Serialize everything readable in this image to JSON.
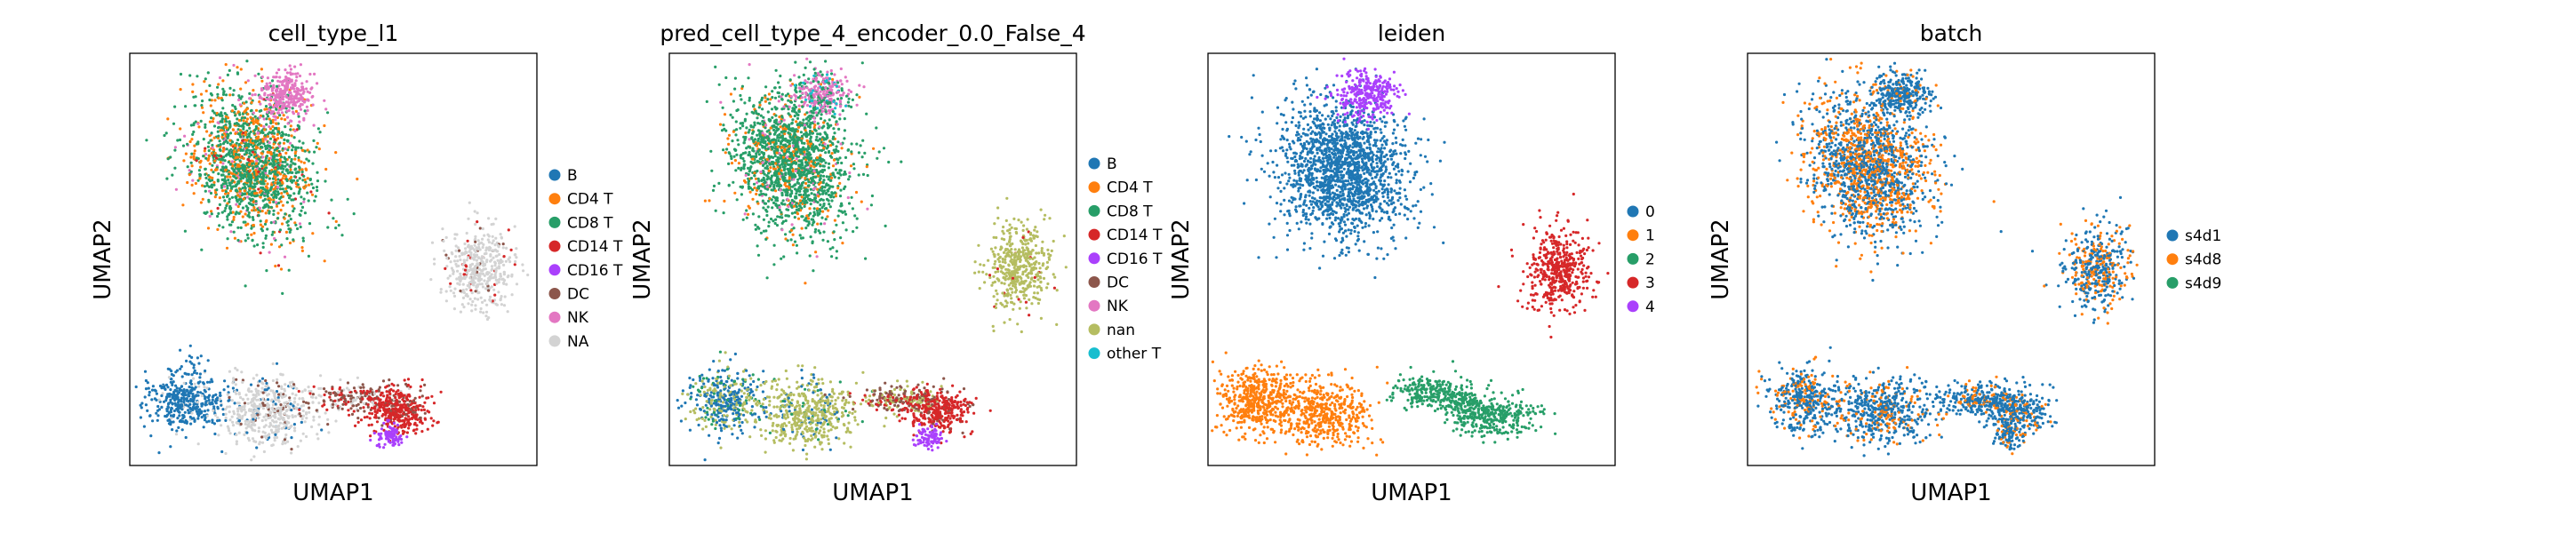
{
  "chart_data": [
    {
      "type": "scatter",
      "title": "cell_type_l1",
      "xlabel": "UMAP1",
      "ylabel": "UMAP2",
      "legend": "right",
      "grid": false,
      "categories": [
        {
          "label": "B",
          "color": "#1f77b4"
        },
        {
          "label": "CD4 T",
          "color": "#ff7f0e"
        },
        {
          "label": "CD8 T",
          "color": "#279e68"
        },
        {
          "label": "CD14 T",
          "color": "#d62728"
        },
        {
          "label": "CD16 T",
          "color": "#aa40fc"
        },
        {
          "label": "DC",
          "color": "#8c564b"
        },
        {
          "label": "NK",
          "color": "#e377c2"
        },
        {
          "label": "NA",
          "color": "#d3d3d3"
        }
      ]
    },
    {
      "type": "scatter",
      "title": "pred_cell_type_4_encoder_0.0_False_4",
      "xlabel": "UMAP1",
      "ylabel": "UMAP2",
      "legend": "right",
      "grid": false,
      "categories": [
        {
          "label": "B",
          "color": "#1f77b4"
        },
        {
          "label": "CD4 T",
          "color": "#ff7f0e"
        },
        {
          "label": "CD8 T",
          "color": "#279e68"
        },
        {
          "label": "CD14 T",
          "color": "#d62728"
        },
        {
          "label": "CD16 T",
          "color": "#aa40fc"
        },
        {
          "label": "DC",
          "color": "#8c564b"
        },
        {
          "label": "NK",
          "color": "#e377c2"
        },
        {
          "label": "nan",
          "color": "#b5bd61"
        },
        {
          "label": "other T",
          "color": "#17becf"
        }
      ]
    },
    {
      "type": "scatter",
      "title": "leiden",
      "xlabel": "UMAP1",
      "ylabel": "UMAP2",
      "legend": "right",
      "grid": false,
      "categories": [
        {
          "label": "0",
          "color": "#1f77b4"
        },
        {
          "label": "1",
          "color": "#ff7f0e"
        },
        {
          "label": "2",
          "color": "#279e68"
        },
        {
          "label": "3",
          "color": "#d62728"
        },
        {
          "label": "4",
          "color": "#aa40fc"
        }
      ]
    },
    {
      "type": "scatter",
      "title": "batch",
      "xlabel": "UMAP1",
      "ylabel": "UMAP2",
      "legend": "right",
      "grid": false,
      "categories": [
        {
          "label": "s4d1",
          "color": "#1f77b4"
        },
        {
          "label": "s4d8",
          "color": "#ff7f0e"
        },
        {
          "label": "s4d9",
          "color": "#279e68"
        }
      ]
    }
  ]
}
